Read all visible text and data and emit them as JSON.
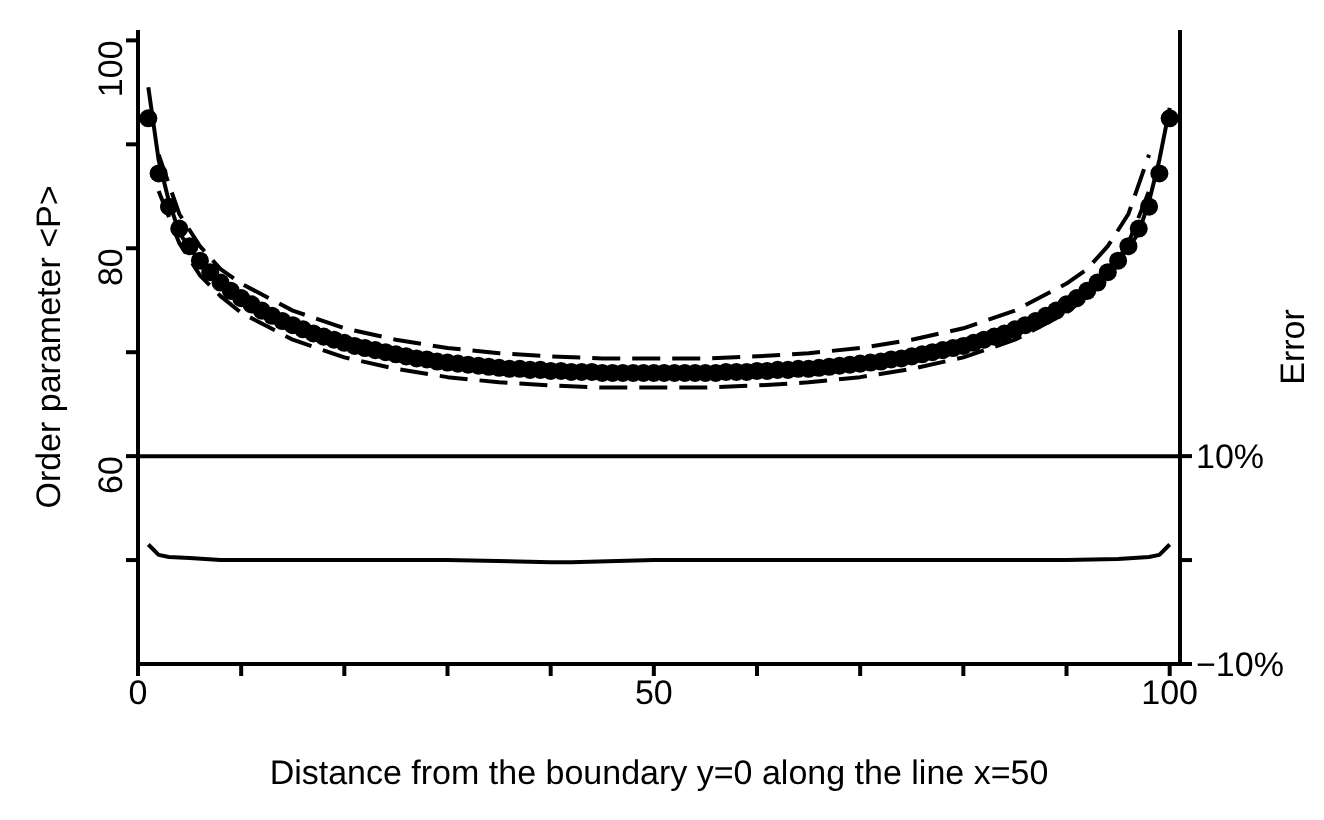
{
  "chart_data": {
    "type": "line",
    "xlabel": "Distance from the boundary y=0 along the line x=50",
    "ylabel": "Order parameter <P>",
    "y2label": "Error",
    "xlim": [
      0,
      101
    ],
    "xticks": [
      0,
      {
        "value": 10,
        "label": null
      },
      {
        "value": 20,
        "label": null
      },
      {
        "value": 30,
        "label": null
      },
      {
        "value": 40,
        "label": null
      },
      50,
      {
        "value": 60,
        "label": null
      },
      {
        "value": 70,
        "label": null
      },
      {
        "value": 80,
        "label": null
      },
      {
        "value": 90,
        "label": null
      },
      100
    ],
    "ylim": [
      40,
      101
    ],
    "yticks": [
      {
        "value": 50,
        "label": null
      },
      60,
      {
        "value": 70,
        "label": null
      },
      80,
      {
        "value": 90,
        "label": null
      },
      100
    ],
    "y2lim": [
      -10,
      51
    ],
    "y2ticks": [
      {
        "value": -10,
        "label": "−10%"
      },
      {
        "value": 0,
        "label": null
      },
      {
        "value": 10,
        "label": "10%"
      }
    ],
    "grid": false,
    "legend": false,
    "ref_lines": [
      {
        "axis": "y",
        "value": 60,
        "color": "#000000",
        "line_style": "solid"
      }
    ],
    "series": [
      {
        "type": "scatter",
        "marker": "circle",
        "color": "#000000",
        "x": [
          1,
          2,
          3,
          4,
          5,
          6,
          7,
          8,
          9,
          10,
          11,
          12,
          13,
          14,
          15,
          16,
          17,
          18,
          19,
          20,
          21,
          22,
          23,
          24,
          25,
          26,
          27,
          28,
          29,
          30,
          31,
          32,
          33,
          34,
          35,
          36,
          37,
          38,
          39,
          40,
          41,
          42,
          43,
          44,
          45,
          46,
          47,
          48,
          49,
          50,
          51,
          52,
          53,
          54,
          55,
          56,
          57,
          58,
          59,
          60,
          61,
          62,
          63,
          64,
          65,
          66,
          67,
          68,
          69,
          70,
          71,
          72,
          73,
          74,
          75,
          76,
          77,
          78,
          79,
          80,
          81,
          82,
          83,
          84,
          85,
          86,
          87,
          88,
          89,
          90,
          91,
          92,
          93,
          94,
          95,
          96,
          97,
          98,
          99,
          100
        ],
        "values": [
          92.5,
          87.2,
          84.0,
          81.9,
          80.2,
          78.8,
          77.7,
          76.7,
          75.9,
          75.2,
          74.6,
          74.0,
          73.5,
          73.0,
          72.6,
          72.2,
          71.8,
          71.5,
          71.2,
          70.9,
          70.6,
          70.4,
          70.2,
          70.0,
          69.8,
          69.6,
          69.4,
          69.3,
          69.1,
          69.0,
          68.9,
          68.8,
          68.7,
          68.6,
          68.5,
          68.4,
          68.4,
          68.3,
          68.3,
          68.2,
          68.2,
          68.1,
          68.1,
          68.1,
          68.0,
          68.0,
          68.0,
          68.0,
          68.0,
          68.0,
          68.0,
          68.0,
          68.0,
          68.0,
          68.0,
          68.0,
          68.1,
          68.1,
          68.1,
          68.2,
          68.2,
          68.3,
          68.3,
          68.4,
          68.4,
          68.5,
          68.6,
          68.7,
          68.8,
          68.9,
          69.0,
          69.1,
          69.3,
          69.4,
          69.6,
          69.8,
          70.0,
          70.2,
          70.4,
          70.6,
          70.9,
          71.2,
          71.5,
          71.8,
          72.2,
          72.6,
          73.0,
          73.5,
          74.0,
          74.6,
          75.2,
          75.9,
          76.7,
          77.7,
          78.8,
          80.2,
          81.9,
          84.0,
          87.2,
          92.5
        ]
      },
      {
        "marker": "none",
        "line_style": "solid",
        "color": "#000000",
        "x": [
          1,
          2,
          3,
          4,
          5,
          8,
          15,
          30,
          50,
          71,
          86,
          93,
          96,
          97,
          98,
          99,
          100
        ],
        "values": [
          95.5,
          88.5,
          84.5,
          81.5,
          80.0,
          76.5,
          72.6,
          69.0,
          68.0,
          69.0,
          72.6,
          76.5,
          80.0,
          81.5,
          84.5,
          88.5,
          93.5
        ]
      },
      {
        "marker": "none",
        "line_style": "dashed",
        "color": "#000000",
        "x": [
          2,
          4,
          6,
          8,
          10,
          15,
          20,
          25,
          30,
          35,
          40,
          45,
          50,
          55,
          60,
          65,
          70,
          75,
          80,
          85,
          90,
          92,
          94,
          96,
          98
        ],
        "values": [
          89.0,
          83.3,
          80.2,
          78.0,
          76.6,
          74.0,
          72.3,
          71.2,
          70.4,
          69.9,
          69.6,
          69.4,
          69.4,
          69.4,
          69.6,
          69.9,
          70.4,
          71.2,
          72.3,
          74.0,
          76.6,
          78.0,
          80.2,
          83.3,
          89.0
        ]
      },
      {
        "marker": "none",
        "line_style": "dashed",
        "color": "#000000",
        "x": [
          2,
          4,
          6,
          8,
          10,
          15,
          20,
          25,
          30,
          35,
          40,
          45,
          50,
          55,
          60,
          65,
          70,
          75,
          80,
          85,
          90,
          92,
          94,
          96,
          98
        ],
        "values": [
          85.5,
          80.5,
          77.4,
          75.4,
          73.8,
          71.2,
          69.5,
          68.4,
          67.6,
          67.1,
          66.8,
          66.6,
          66.6,
          66.6,
          66.8,
          67.1,
          67.6,
          68.4,
          69.5,
          71.2,
          73.8,
          75.4,
          77.4,
          80.5,
          85.5
        ]
      },
      {
        "axis": "y2",
        "marker": "none",
        "line_style": "solid",
        "color": "#000000",
        "x": [
          1,
          2,
          3,
          5,
          8,
          10,
          20,
          30,
          40,
          42,
          50,
          60,
          70,
          80,
          90,
          95,
          98,
          99,
          100
        ],
        "values": [
          1.5,
          0.5,
          0.3,
          0.2,
          0.0,
          0.0,
          0.0,
          0.0,
          -0.2,
          -0.2,
          0.0,
          0.0,
          0.0,
          0.0,
          0.0,
          0.1,
          0.3,
          0.5,
          1.5
        ]
      }
    ]
  }
}
